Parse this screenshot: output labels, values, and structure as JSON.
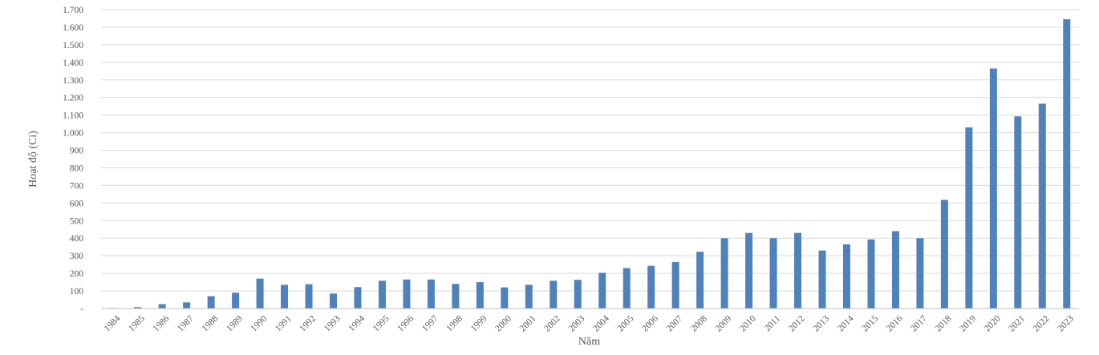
{
  "chart_data": {
    "type": "bar",
    "title": "",
    "xlabel": "Năm",
    "ylabel": "Hoạt độ (Ci)",
    "ylim": [
      0,
      1700
    ],
    "ytick_step": 100,
    "ytick_labels": [
      "-",
      "100",
      "200",
      "300",
      "400",
      "500",
      "600",
      "700",
      "800",
      "900",
      "1.000",
      "1.100",
      "1.200",
      "1.300",
      "1.400",
      "1.500",
      "1.600",
      "1.700"
    ],
    "grid": true,
    "legend": "none",
    "bar_color": "#4f81bd",
    "categories": [
      "1984",
      "1985",
      "1986",
      "1987",
      "1988",
      "1989",
      "1990",
      "1991",
      "1992",
      "1993",
      "1994",
      "1995",
      "1996",
      "1997",
      "1998",
      "1999",
      "2000",
      "2001",
      "2002",
      "2003",
      "2004",
      "2005",
      "2006",
      "2007",
      "2008",
      "2009",
      "2010",
      "2011",
      "2012",
      "2013",
      "2014",
      "2015",
      "2016",
      "2017",
      "2018",
      "2019",
      "2020",
      "2021",
      "2022",
      "2023"
    ],
    "values": [
      3,
      8,
      25,
      35,
      70,
      90,
      170,
      135,
      138,
      85,
      122,
      158,
      165,
      165,
      140,
      150,
      120,
      135,
      158,
      163,
      203,
      230,
      243,
      265,
      323,
      400,
      430,
      400,
      430,
      330,
      365,
      393,
      440,
      400,
      618,
      1030,
      1365,
      1093,
      1165,
      1645
    ]
  }
}
